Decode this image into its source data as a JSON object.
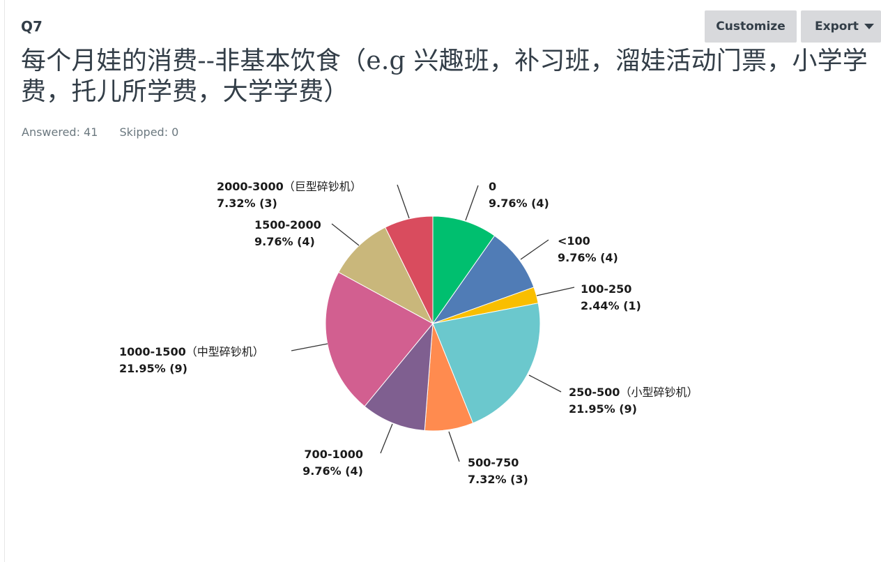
{
  "question": {
    "number": "Q7",
    "title": "每个月娃的消费--非基本饮食（e.g 兴趣班，补习班，溜娃活动门票，小学学费，托儿所学费，大学学费）",
    "answered_label": "Answered: 41",
    "skipped_label": "Skipped: 0"
  },
  "toolbar": {
    "customize_label": "Customize",
    "export_label": "Export"
  },
  "chart_data": {
    "type": "pie",
    "title": "",
    "slices": [
      {
        "label": "0",
        "suffix": "",
        "percent_label": "9.76% (4)",
        "count": 4,
        "percent": 9.76,
        "color": "#00bf6f"
      },
      {
        "label": "<100",
        "suffix": "",
        "percent_label": "9.76% (4)",
        "count": 4,
        "percent": 9.76,
        "color": "#507cb6"
      },
      {
        "label": "100-250",
        "suffix": "",
        "percent_label": "2.44% (1)",
        "count": 1,
        "percent": 2.44,
        "color": "#f9be00"
      },
      {
        "label": "250-500",
        "suffix": "（小型碎钞机）",
        "percent_label": "21.95% (9)",
        "count": 9,
        "percent": 21.95,
        "color": "#6bc8cd"
      },
      {
        "label": "500-750",
        "suffix": "",
        "percent_label": "7.32% (3)",
        "count": 3,
        "percent": 7.32,
        "color": "#ff8b4f"
      },
      {
        "label": "700-1000",
        "suffix": "",
        "percent_label": "9.76% (4)",
        "count": 4,
        "percent": 9.76,
        "color": "#7f5f90"
      },
      {
        "label": "1000-1500",
        "suffix": "（中型碎钞机）",
        "percent_label": "21.95% (9)",
        "count": 9,
        "percent": 21.95,
        "color": "#d25f90"
      },
      {
        "label": "1500-2000",
        "suffix": "",
        "percent_label": "9.76% (4)",
        "count": 4,
        "percent": 9.76,
        "color": "#c9b77b"
      },
      {
        "label": "2000-3000",
        "suffix": "（巨型碎钞机）",
        "percent_label": "7.32% (3)",
        "count": 3,
        "percent": 7.32,
        "color": "#d94c5e"
      }
    ]
  }
}
